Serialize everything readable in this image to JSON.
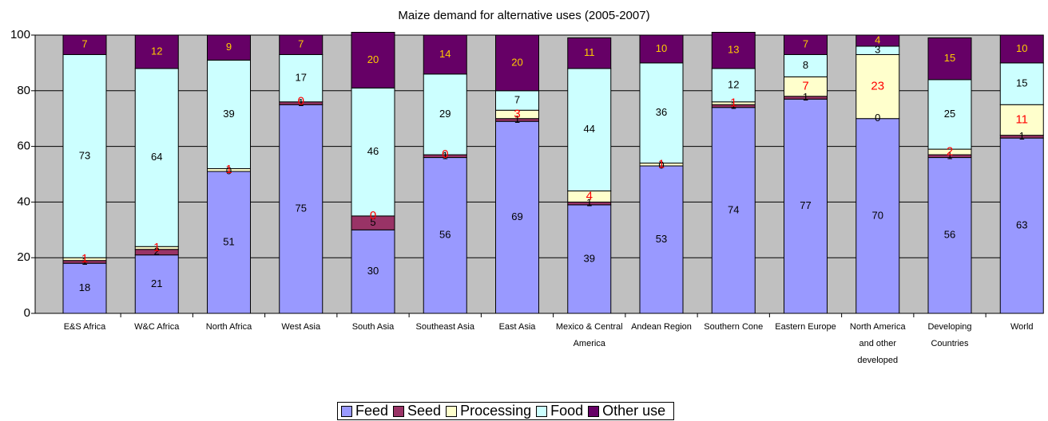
{
  "chart_data": {
    "type": "stacked_bar",
    "title": "Maize demand for alternative uses (2005-2007)",
    "categories": [
      "E&S Africa",
      "W&C Africa",
      "North Africa",
      "West Asia",
      "South Asia",
      "Southeast Asia",
      "East Asia",
      "Mexico & Central America",
      "Andean Region",
      "Southern Cone",
      "Eastern Europe",
      "North America and other developed",
      "Developing Countries",
      "World"
    ],
    "series": [
      {
        "name": "Feed",
        "color": "#9999ff",
        "values": [
          18,
          21,
          51,
          75,
          30,
          56,
          69,
          39,
          53,
          74,
          77,
          70,
          56,
          63
        ]
      },
      {
        "name": "Seed",
        "color": "#993366",
        "values": [
          1,
          2,
          0,
          1,
          5,
          1,
          1,
          1,
          0,
          1,
          1,
          0,
          1,
          1
        ]
      },
      {
        "name": "Processing",
        "color": "#ffffcc",
        "values": [
          1,
          1,
          1,
          0,
          0,
          0,
          3,
          4,
          1,
          1,
          7,
          23,
          2,
          11
        ]
      },
      {
        "name": "Food",
        "color": "#ccffff",
        "values": [
          73,
          64,
          39,
          17,
          46,
          29,
          7,
          44,
          36,
          12,
          8,
          3,
          25,
          15
        ]
      },
      {
        "name": "Other use",
        "color": "#660066",
        "values": [
          7,
          12,
          9,
          7,
          20,
          14,
          20,
          11,
          10,
          13,
          7,
          4,
          15,
          10
        ]
      }
    ],
    "ylim": [
      0,
      100
    ],
    "yticks": [
      0,
      20,
      40,
      60,
      80,
      100
    ],
    "grid": true
  }
}
